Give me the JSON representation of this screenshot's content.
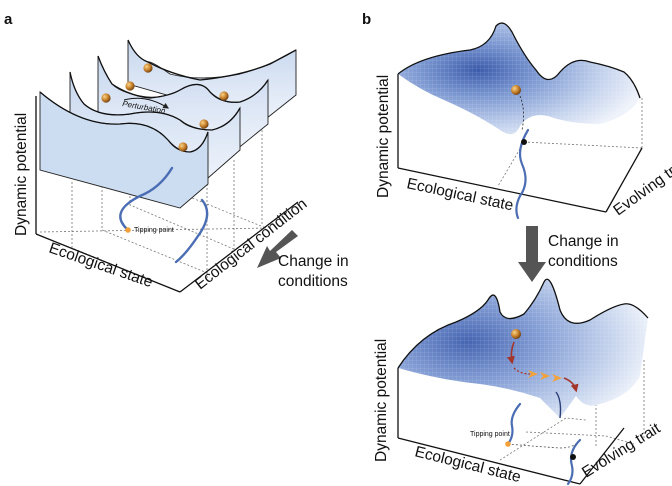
{
  "panel_a": {
    "letter": "a",
    "y_axis": "Dynamic potential",
    "x_axis": "Ecological state",
    "z_axis": "Ecological condition",
    "perturbation": "Perturbation",
    "tipping_point": "Tipping point",
    "arrow_label_line1": "Change in",
    "arrow_label_line2": "conditions"
  },
  "panel_b": {
    "letter": "b",
    "top": {
      "y_axis": "Dynamic potential",
      "x_axis": "Ecological state",
      "z_axis": "Evolving trait"
    },
    "arrow_label_line1": "Change in",
    "arrow_label_line2": "conditions",
    "bottom": {
      "y_axis": "Dynamic potential",
      "x_axis": "Ecological state",
      "z_axis": "Evolving trait",
      "tipping_point": "Tipping point"
    }
  },
  "colors": {
    "surface_dark": "#3f5fae",
    "surface_light": "#e8eef9",
    "ball": "#c9822a",
    "curve": "#4b6db3",
    "tipping_dot": "#f2a13a",
    "arrow": "#555555",
    "path_red": "#a3352b",
    "path_orange": "#f2a23a"
  }
}
